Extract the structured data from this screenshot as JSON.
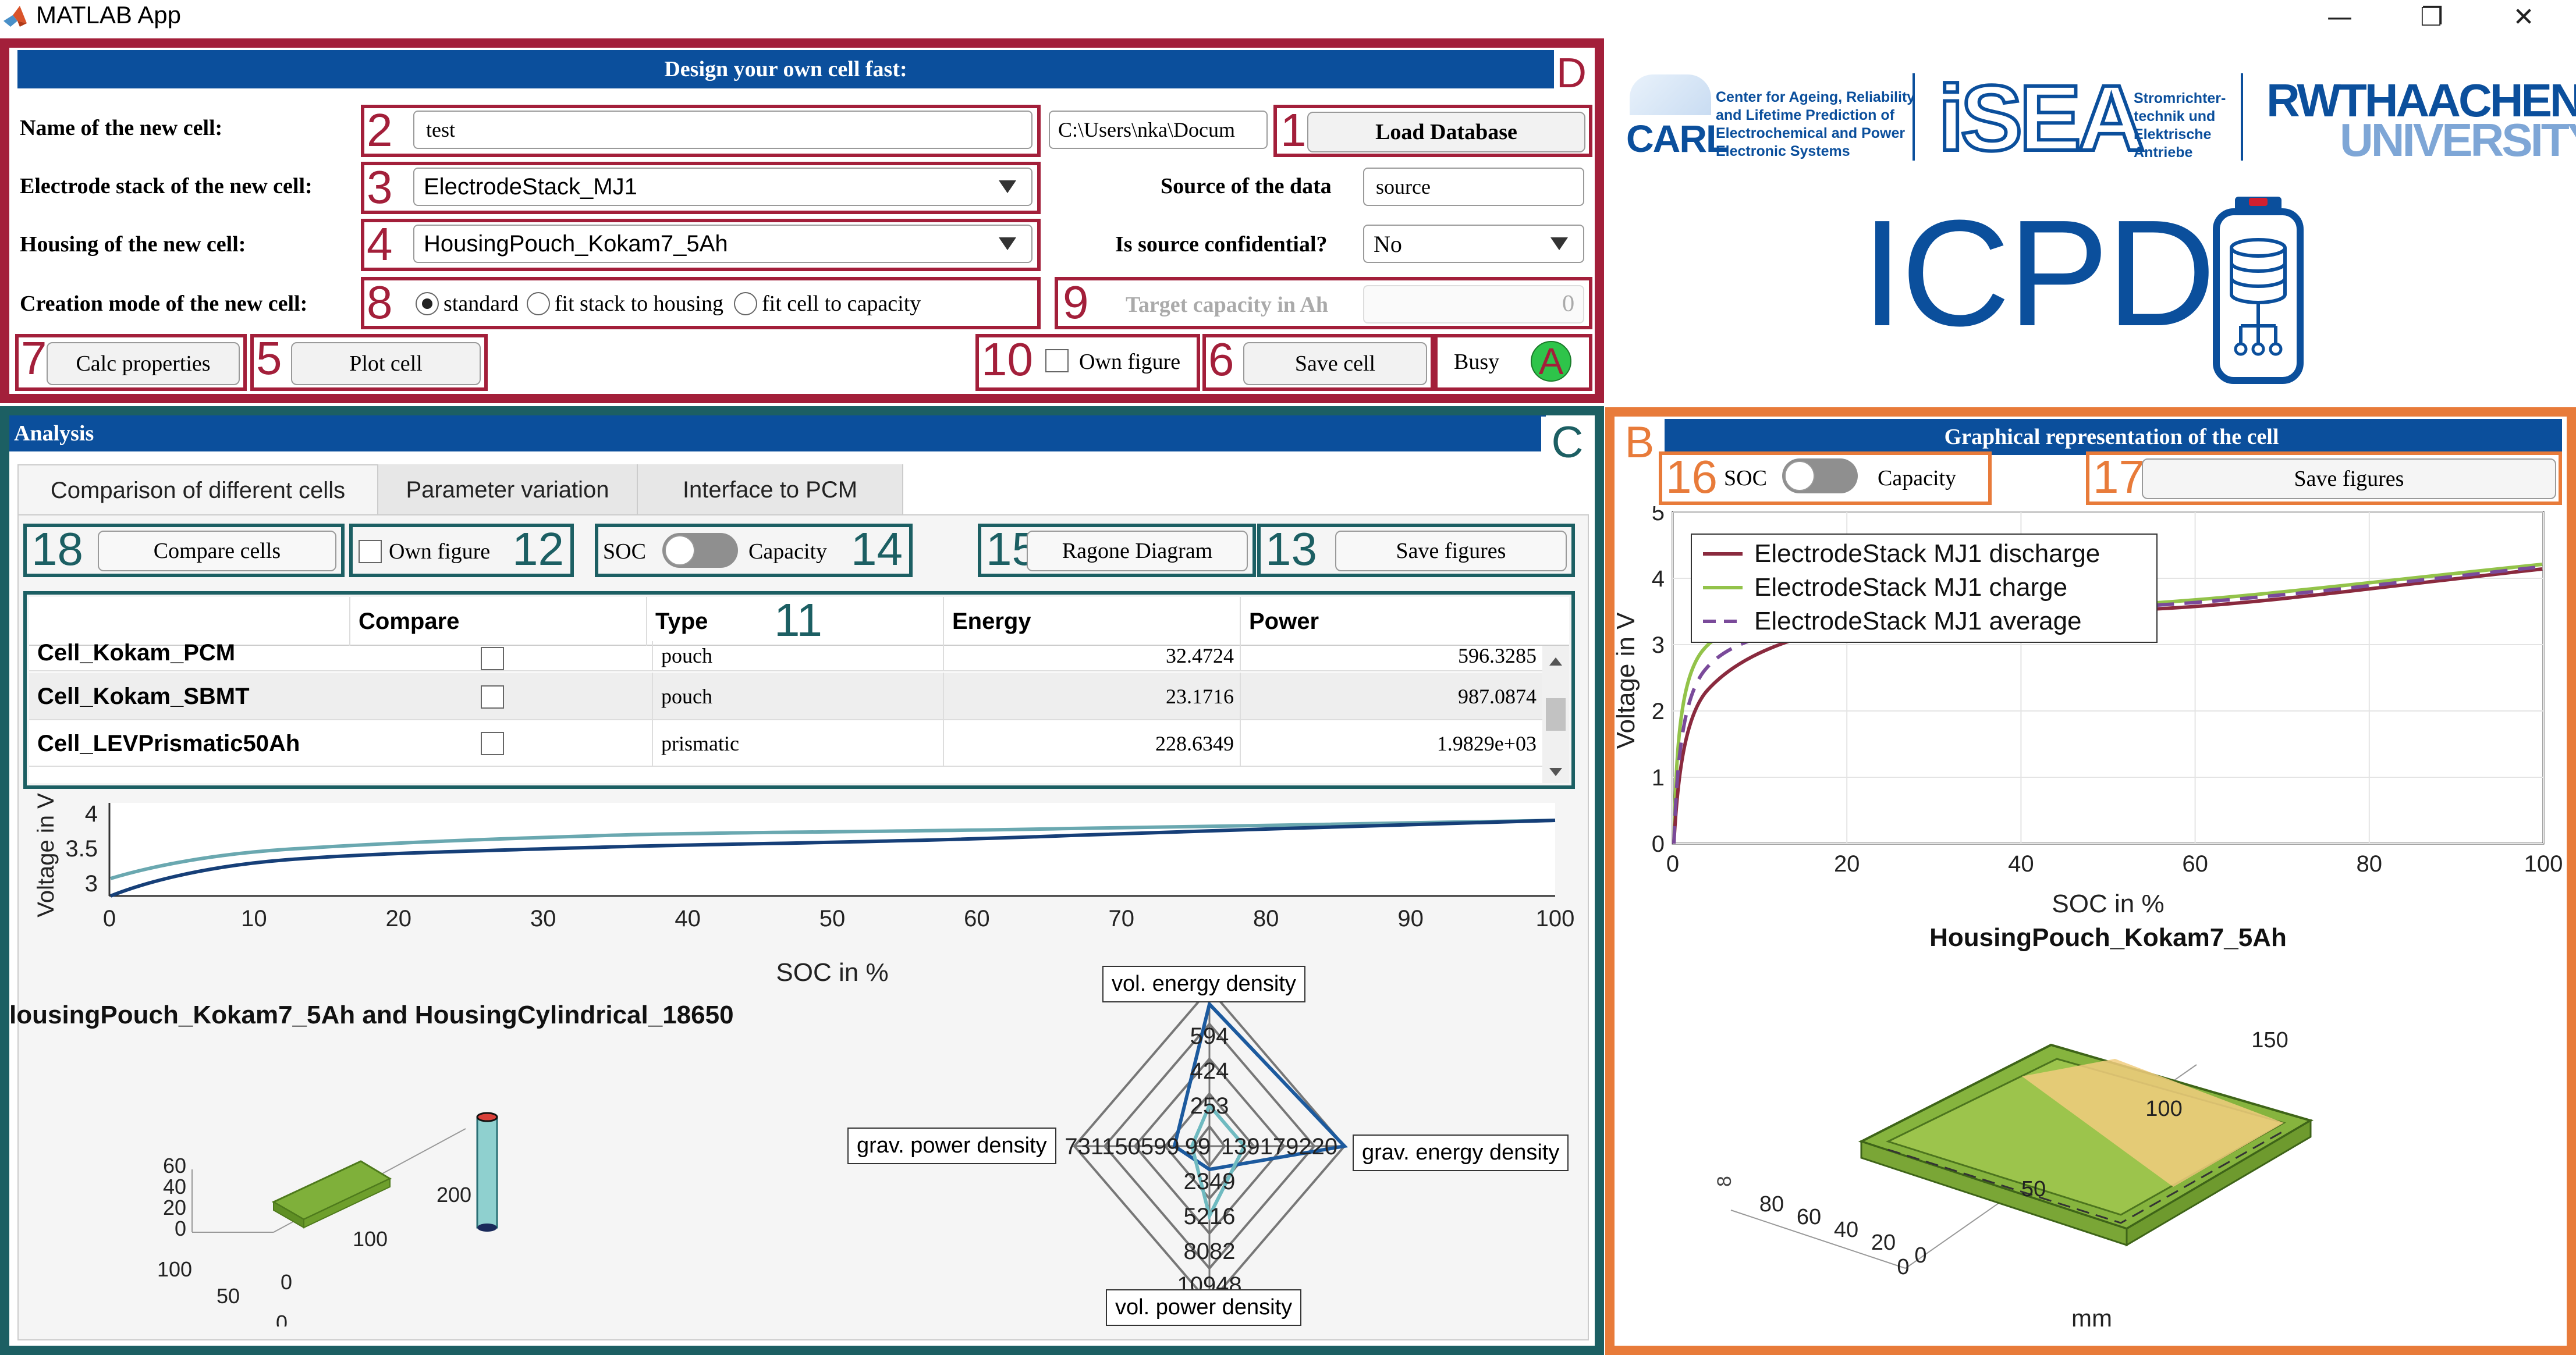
{
  "window": {
    "title": "MATLAB App",
    "controls": {
      "minimize": "—",
      "restore": "❐",
      "close": "✕"
    }
  },
  "design_panel": {
    "letter": "D",
    "header": "Design your own cell fast:",
    "name_label": "Name of the new cell:",
    "name_value": "test",
    "path_value": "C:\\Users\\nka\\Docum",
    "load_database_button": "Load Database",
    "electrode_label": "Electrode stack of the new cell:",
    "electrode_value": "ElectrodeStack_MJ1",
    "source_label": "Source of the data",
    "source_value": "source",
    "housing_label": "Housing of the new cell:",
    "housing_value": "HousingPouch_Kokam7_5Ah",
    "confidential_label": "Is source confidential?",
    "confidential_value": "No",
    "creation_label": "Creation mode of the new cell:",
    "modes": [
      "standard",
      "fit stack to housing",
      "fit cell to capacity"
    ],
    "target_label": "Target capacity in Ah",
    "target_value": "0",
    "calc_button": "Calc properties",
    "plot_button": "Plot cell",
    "own_figure_label": "Own figure",
    "save_cell_button": "Save cell",
    "busy_label": "Busy",
    "busy_lamp": "A",
    "markers": {
      "n1": "1",
      "n2": "2",
      "n3": "3",
      "n4": "4",
      "n5": "5",
      "n6": "6",
      "n7": "7",
      "n8": "8",
      "n9": "9",
      "n10": "10"
    }
  },
  "logos": {
    "carl_name": "CARL",
    "carl_text": [
      "Center for Ageing, Reliability",
      "and Lifetime Prediction of",
      "Electrochemical and Power",
      "Electronic Systems"
    ],
    "isea_name": "iSEA",
    "isea_text": [
      "Stromrichter-",
      "technik und",
      "Elektrische",
      "Antriebe"
    ],
    "rwth_line1": "RWTHAACHEN",
    "rwth_line2": "UNIVERSITY",
    "icpd": "ICPD"
  },
  "analysis_panel": {
    "letter": "C",
    "header": "Analysis",
    "tabs": [
      "Comparison of different cells",
      "Parameter variation",
      "Interface to PCM"
    ],
    "compare_button": "Compare cells",
    "own_figure_label": "Own figure",
    "soc_label": "SOC",
    "capacity_label": "Capacity",
    "ragone_button": "Ragone Diagram",
    "save_figures_button": "Save figures",
    "markers": {
      "n11": "11",
      "n12": "12",
      "n13": "13",
      "n14": "14",
      "n15": "15",
      "n18": "18"
    },
    "table": {
      "columns": [
        "",
        "Compare",
        "Type",
        "Energy",
        "Power"
      ],
      "rows": [
        {
          "name": "Cell_Kokam_PCM",
          "type": "pouch",
          "energy": "32.4724",
          "power": "596.3285"
        },
        {
          "name": "Cell_Kokam_SBMT",
          "type": "pouch",
          "energy": "23.1716",
          "power": "987.0874"
        },
        {
          "name": "Cell_LEVPrismatic50Ah",
          "type": "prismatic",
          "energy": "228.6349",
          "power": "1.9829e+03"
        }
      ]
    },
    "voltage_chart": {
      "ylabel": "Voltage in V",
      "xlabel": "SOC in %",
      "yticks": [
        "3",
        "3.5",
        "4"
      ],
      "xticks": [
        "0",
        "10",
        "20",
        "30",
        "40",
        "50",
        "60",
        "70",
        "80",
        "90",
        "100"
      ]
    },
    "comparison_title": "lousingPouch_Kokam7_5Ah and HousingCylindrical_18650",
    "housing3d_ticks": {
      "z": [
        "60",
        "40",
        "20",
        "0"
      ],
      "x": [
        "100",
        "50",
        "0"
      ],
      "y": [
        "0",
        "100",
        "200"
      ]
    },
    "radar": {
      "axes": [
        "vol. energy density",
        "grav. energy density",
        "vol. power density",
        "grav. power density"
      ],
      "top_ticks": [
        "594",
        "424",
        "253"
      ],
      "bottom_ticks": [
        "2349",
        "5216",
        "8082",
        "10948"
      ],
      "left_ticks": "731150599",
      "right_ticks": "139179220",
      "center": "99"
    }
  },
  "graphic_panel": {
    "letter": "B",
    "header": "Graphical representation of the cell",
    "soc_label": "SOC",
    "capacity_label": "Capacity",
    "save_figures_button": "Save figures",
    "markers": {
      "n16": "16",
      "n17": "17"
    },
    "chart": {
      "ylabel": "Voltage in V",
      "xlabel": "SOC in %",
      "title": "HousingPouch_Kokam7_5Ah",
      "yticks": [
        "0",
        "1",
        "2",
        "3",
        "4",
        "5"
      ],
      "xticks": [
        "0",
        "20",
        "40",
        "60",
        "80",
        "100"
      ],
      "legend": [
        "ElectrodeStack MJ1 discharge",
        "ElectrodeStack MJ1 charge",
        "ElectrodeStack MJ1 average"
      ]
    },
    "cell3d": {
      "xlabel": "mm",
      "x_ticks": [
        "0",
        "50",
        "100",
        "150"
      ],
      "y_ticks": [
        "80",
        "60",
        "40",
        "20",
        "0"
      ],
      "z_ticks": "8"
    }
  },
  "colors": {
    "red": "#a31f3a",
    "teal": "#1c5f63",
    "orange": "#e87b3a",
    "blue_header": "#0b4f9c",
    "green_lamp": "#2ec44a"
  }
}
